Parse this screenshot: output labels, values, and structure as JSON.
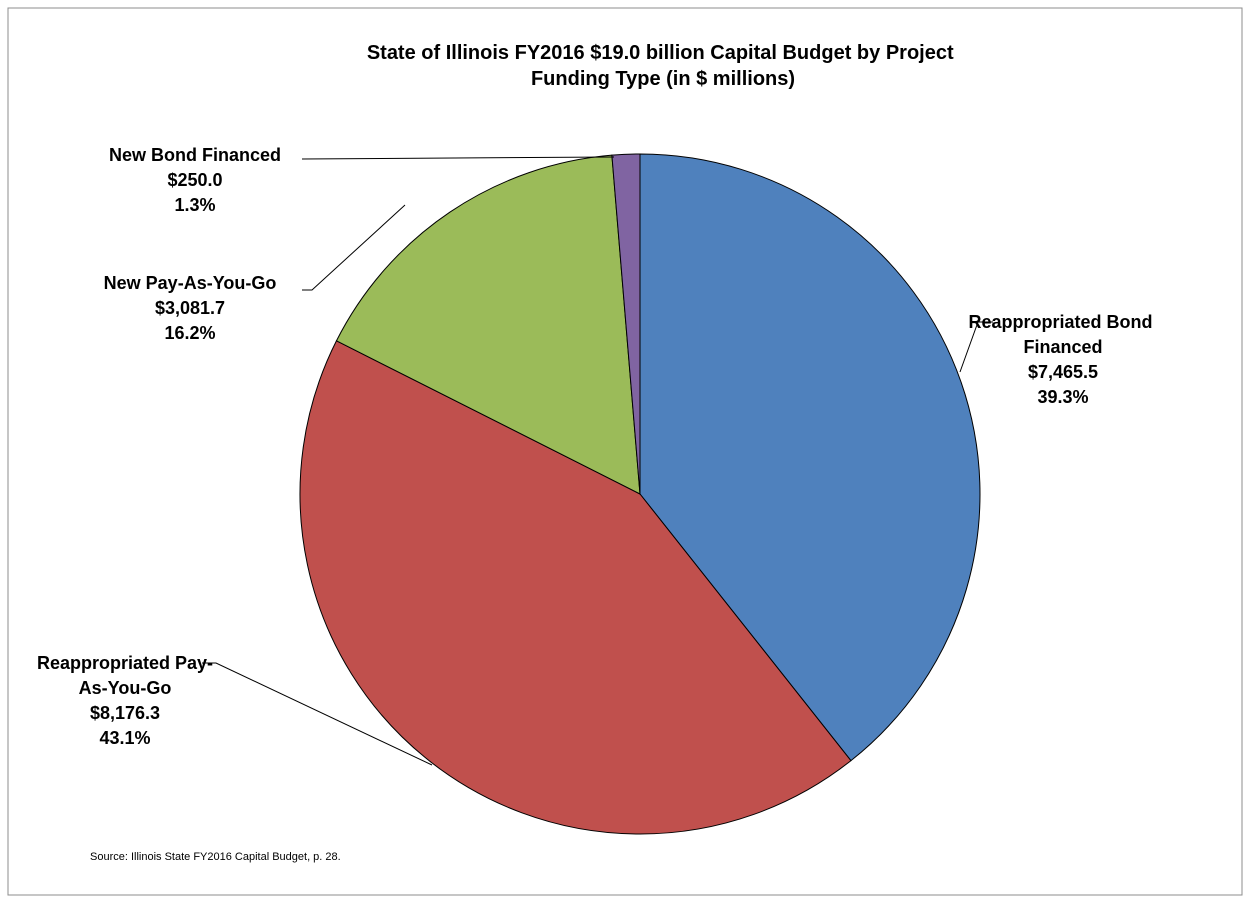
{
  "chart_data": {
    "type": "pie",
    "title": "State of Illinois FY2016 $19.0 billion Capital Budget by Project Funding Type (in $ millions)",
    "categories": [
      "Reappropriated Bond Financed",
      "Reappropriated Pay-As-You-Go",
      "New Pay-As-You-Go",
      "New Bond Financed"
    ],
    "values": [
      7465.5,
      8176.3,
      3081.7,
      250.0
    ],
    "value_labels": [
      "$7,465.5",
      "$8,176.3",
      "$3,081.7",
      "$250.0"
    ],
    "percentages": [
      39.3,
      43.1,
      16.2,
      1.3
    ],
    "percentage_labels": [
      "39.3%",
      "43.1%",
      "16.2%",
      "1.3%"
    ],
    "colors": [
      "#4f81bd",
      "#c0504d",
      "#9bbb59",
      "#8064a2"
    ],
    "source": "Source: Illinois State FY2016 Capital Budget, p. 28."
  }
}
